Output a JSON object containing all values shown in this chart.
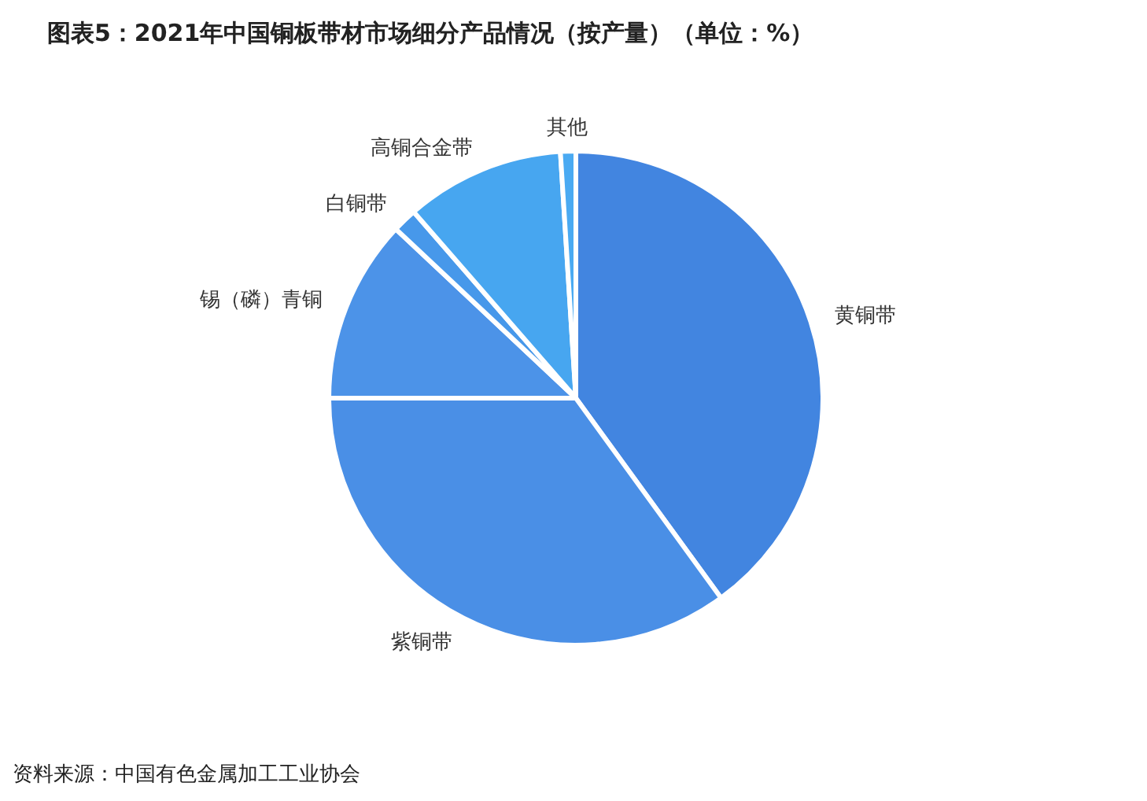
{
  "chart_data": {
    "type": "pie",
    "title": "图表5：2021年中国铜板带材市场细分产品情况（按产量）（单位：%）",
    "categories": [
      "黄铜带",
      "紫铜带",
      "锡（磷）青铜",
      "白铜带",
      "高铜合金带",
      "其他"
    ],
    "values": [
      40,
      35,
      12,
      1.6,
      10.4,
      1.0
    ],
    "colors": [
      "#4285e0",
      "#4a8fe6",
      "#4c93e8",
      "#4798ea",
      "#47a6f0",
      "#4aaaf2"
    ],
    "annotations": [
      "资料来源：中国有色金属加工工业协会"
    ]
  }
}
